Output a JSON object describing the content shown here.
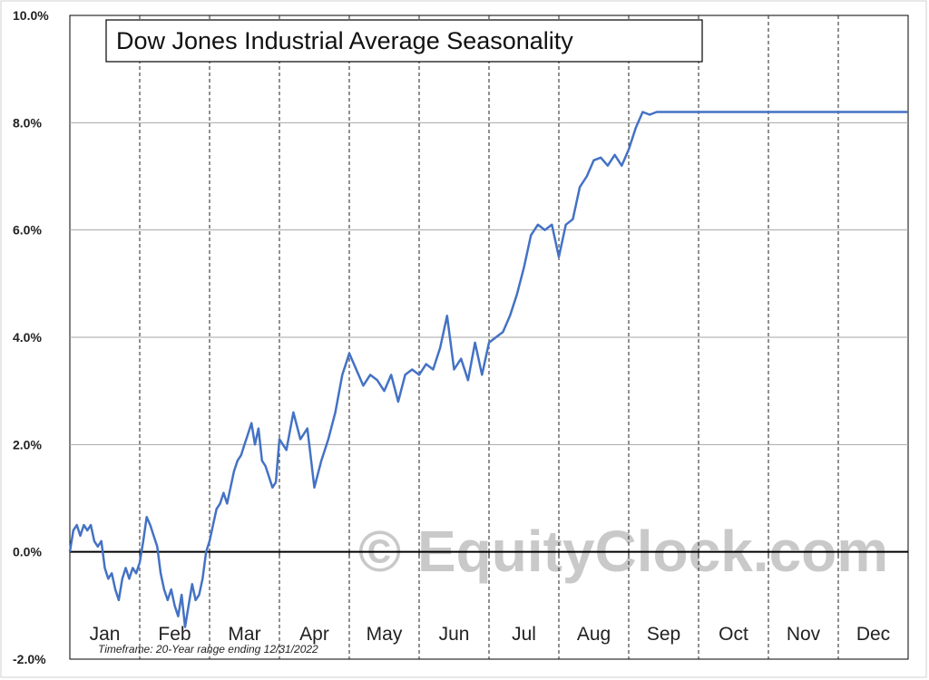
{
  "chart_data": {
    "type": "line",
    "title": "Dow Jones Industrial Average Seasonality",
    "footnote": "Timeframe: 20-Year range ending 12/31/2022",
    "watermark": "© EquityClock.com",
    "xlabel": "",
    "ylabel": "",
    "ylim": [
      -2.0,
      10.0
    ],
    "y_ticks": [
      "10.0%",
      "8.0%",
      "6.0%",
      "4.0%",
      "2.0%",
      "0.0%",
      "-2.0%"
    ],
    "y_tick_values": [
      10,
      8,
      6,
      4,
      2,
      0,
      -2
    ],
    "categories": [
      "Jan",
      "Feb",
      "Mar",
      "Apr",
      "May",
      "Jun",
      "Jul",
      "Aug",
      "Sep",
      "Oct",
      "Nov",
      "Dec"
    ],
    "grid": true,
    "line_color": "#4472c4",
    "series": [
      {
        "name": "Dow Jones Industrial Average",
        "x": [
          0.0,
          0.05,
          0.1,
          0.15,
          0.2,
          0.25,
          0.3,
          0.35,
          0.4,
          0.45,
          0.5,
          0.55,
          0.6,
          0.65,
          0.7,
          0.75,
          0.8,
          0.85,
          0.9,
          0.95,
          1.0,
          1.05,
          1.1,
          1.15,
          1.2,
          1.25,
          1.3,
          1.35,
          1.4,
          1.45,
          1.5,
          1.55,
          1.6,
          1.65,
          1.7,
          1.75,
          1.8,
          1.85,
          1.9,
          1.95,
          2.0,
          2.05,
          2.1,
          2.15,
          2.2,
          2.25,
          2.3,
          2.35,
          2.4,
          2.45,
          2.5,
          2.55,
          2.6,
          2.65,
          2.7,
          2.75,
          2.8,
          2.85,
          2.9,
          2.95,
          3.0,
          3.1,
          3.2,
          3.3,
          3.4,
          3.5,
          3.6,
          3.7,
          3.8,
          3.9,
          4.0,
          4.1,
          4.2,
          4.3,
          4.4,
          4.5,
          4.6,
          4.7,
          4.8,
          4.9,
          5.0,
          5.1,
          5.2,
          5.3,
          5.4,
          5.5,
          5.6,
          5.7,
          5.8,
          5.9,
          6.0,
          6.1,
          6.2,
          6.3,
          6.4,
          6.5,
          6.6,
          6.7,
          6.8,
          6.9,
          7.0,
          7.1,
          7.2,
          7.3,
          7.4,
          7.5,
          7.6,
          7.7,
          7.8,
          7.9,
          8.0,
          8.1,
          8.2,
          8.3,
          8.4,
          8.5,
          8.6,
          8.7,
          8.8,
          8.9,
          9.0,
          9.1,
          9.2,
          9.3,
          9.4,
          9.5,
          9.6,
          9.7,
          9.8,
          9.9,
          10.0,
          10.1,
          10.2,
          10.3,
          10.4,
          10.5,
          10.6,
          10.7,
          10.8,
          10.9,
          11.0,
          11.1,
          11.2,
          11.3,
          11.4,
          11.5,
          11.6,
          11.7,
          11.8,
          11.9,
          12.0
        ],
        "values": [
          0.0,
          0.4,
          0.5,
          0.3,
          0.5,
          0.4,
          0.5,
          0.2,
          0.1,
          0.2,
          -0.3,
          -0.5,
          -0.4,
          -0.7,
          -0.9,
          -0.5,
          -0.3,
          -0.5,
          -0.3,
          -0.4,
          -0.2,
          0.2,
          0.65,
          0.5,
          0.3,
          0.1,
          -0.4,
          -0.7,
          -0.9,
          -0.7,
          -1.0,
          -1.2,
          -0.8,
          -1.4,
          -1.0,
          -0.6,
          -0.9,
          -0.8,
          -0.5,
          0.0,
          0.2,
          0.5,
          0.8,
          0.9,
          1.1,
          0.9,
          1.2,
          1.5,
          1.7,
          1.8,
          2.0,
          2.2,
          2.4,
          2.0,
          2.3,
          1.7,
          1.6,
          1.4,
          1.2,
          1.3,
          2.1,
          1.9,
          2.6,
          2.1,
          2.3,
          1.2,
          1.7,
          2.1,
          2.6,
          3.3,
          3.7,
          3.4,
          3.1,
          3.3,
          3.2,
          3.0,
          3.3,
          2.8,
          3.3,
          3.4,
          3.3,
          3.5,
          3.4,
          3.8,
          4.4,
          3.4,
          3.6,
          3.2,
          3.9,
          3.3,
          3.9,
          4.0,
          4.1,
          4.4,
          4.8,
          5.3,
          5.9,
          6.1,
          6.0,
          6.1,
          5.5,
          6.1,
          6.2,
          6.8,
          7.0,
          7.3,
          7.35,
          7.2,
          7.4,
          7.2,
          7.5,
          7.9,
          8.2,
          8.15,
          8.2,
          8.2,
          8.2,
          8.2,
          8.2,
          8.2,
          8.2,
          8.2,
          8.2,
          8.2,
          8.2,
          8.2,
          8.2,
          8.2,
          8.2,
          8.2,
          8.2,
          8.2,
          8.2,
          8.2,
          8.2,
          8.2,
          8.2,
          8.2,
          8.2,
          8.2,
          8.2,
          8.2,
          8.2,
          8.2,
          8.2,
          8.2,
          8.2,
          8.2,
          8.2,
          8.2,
          8.2
        ]
      }
    ]
  }
}
